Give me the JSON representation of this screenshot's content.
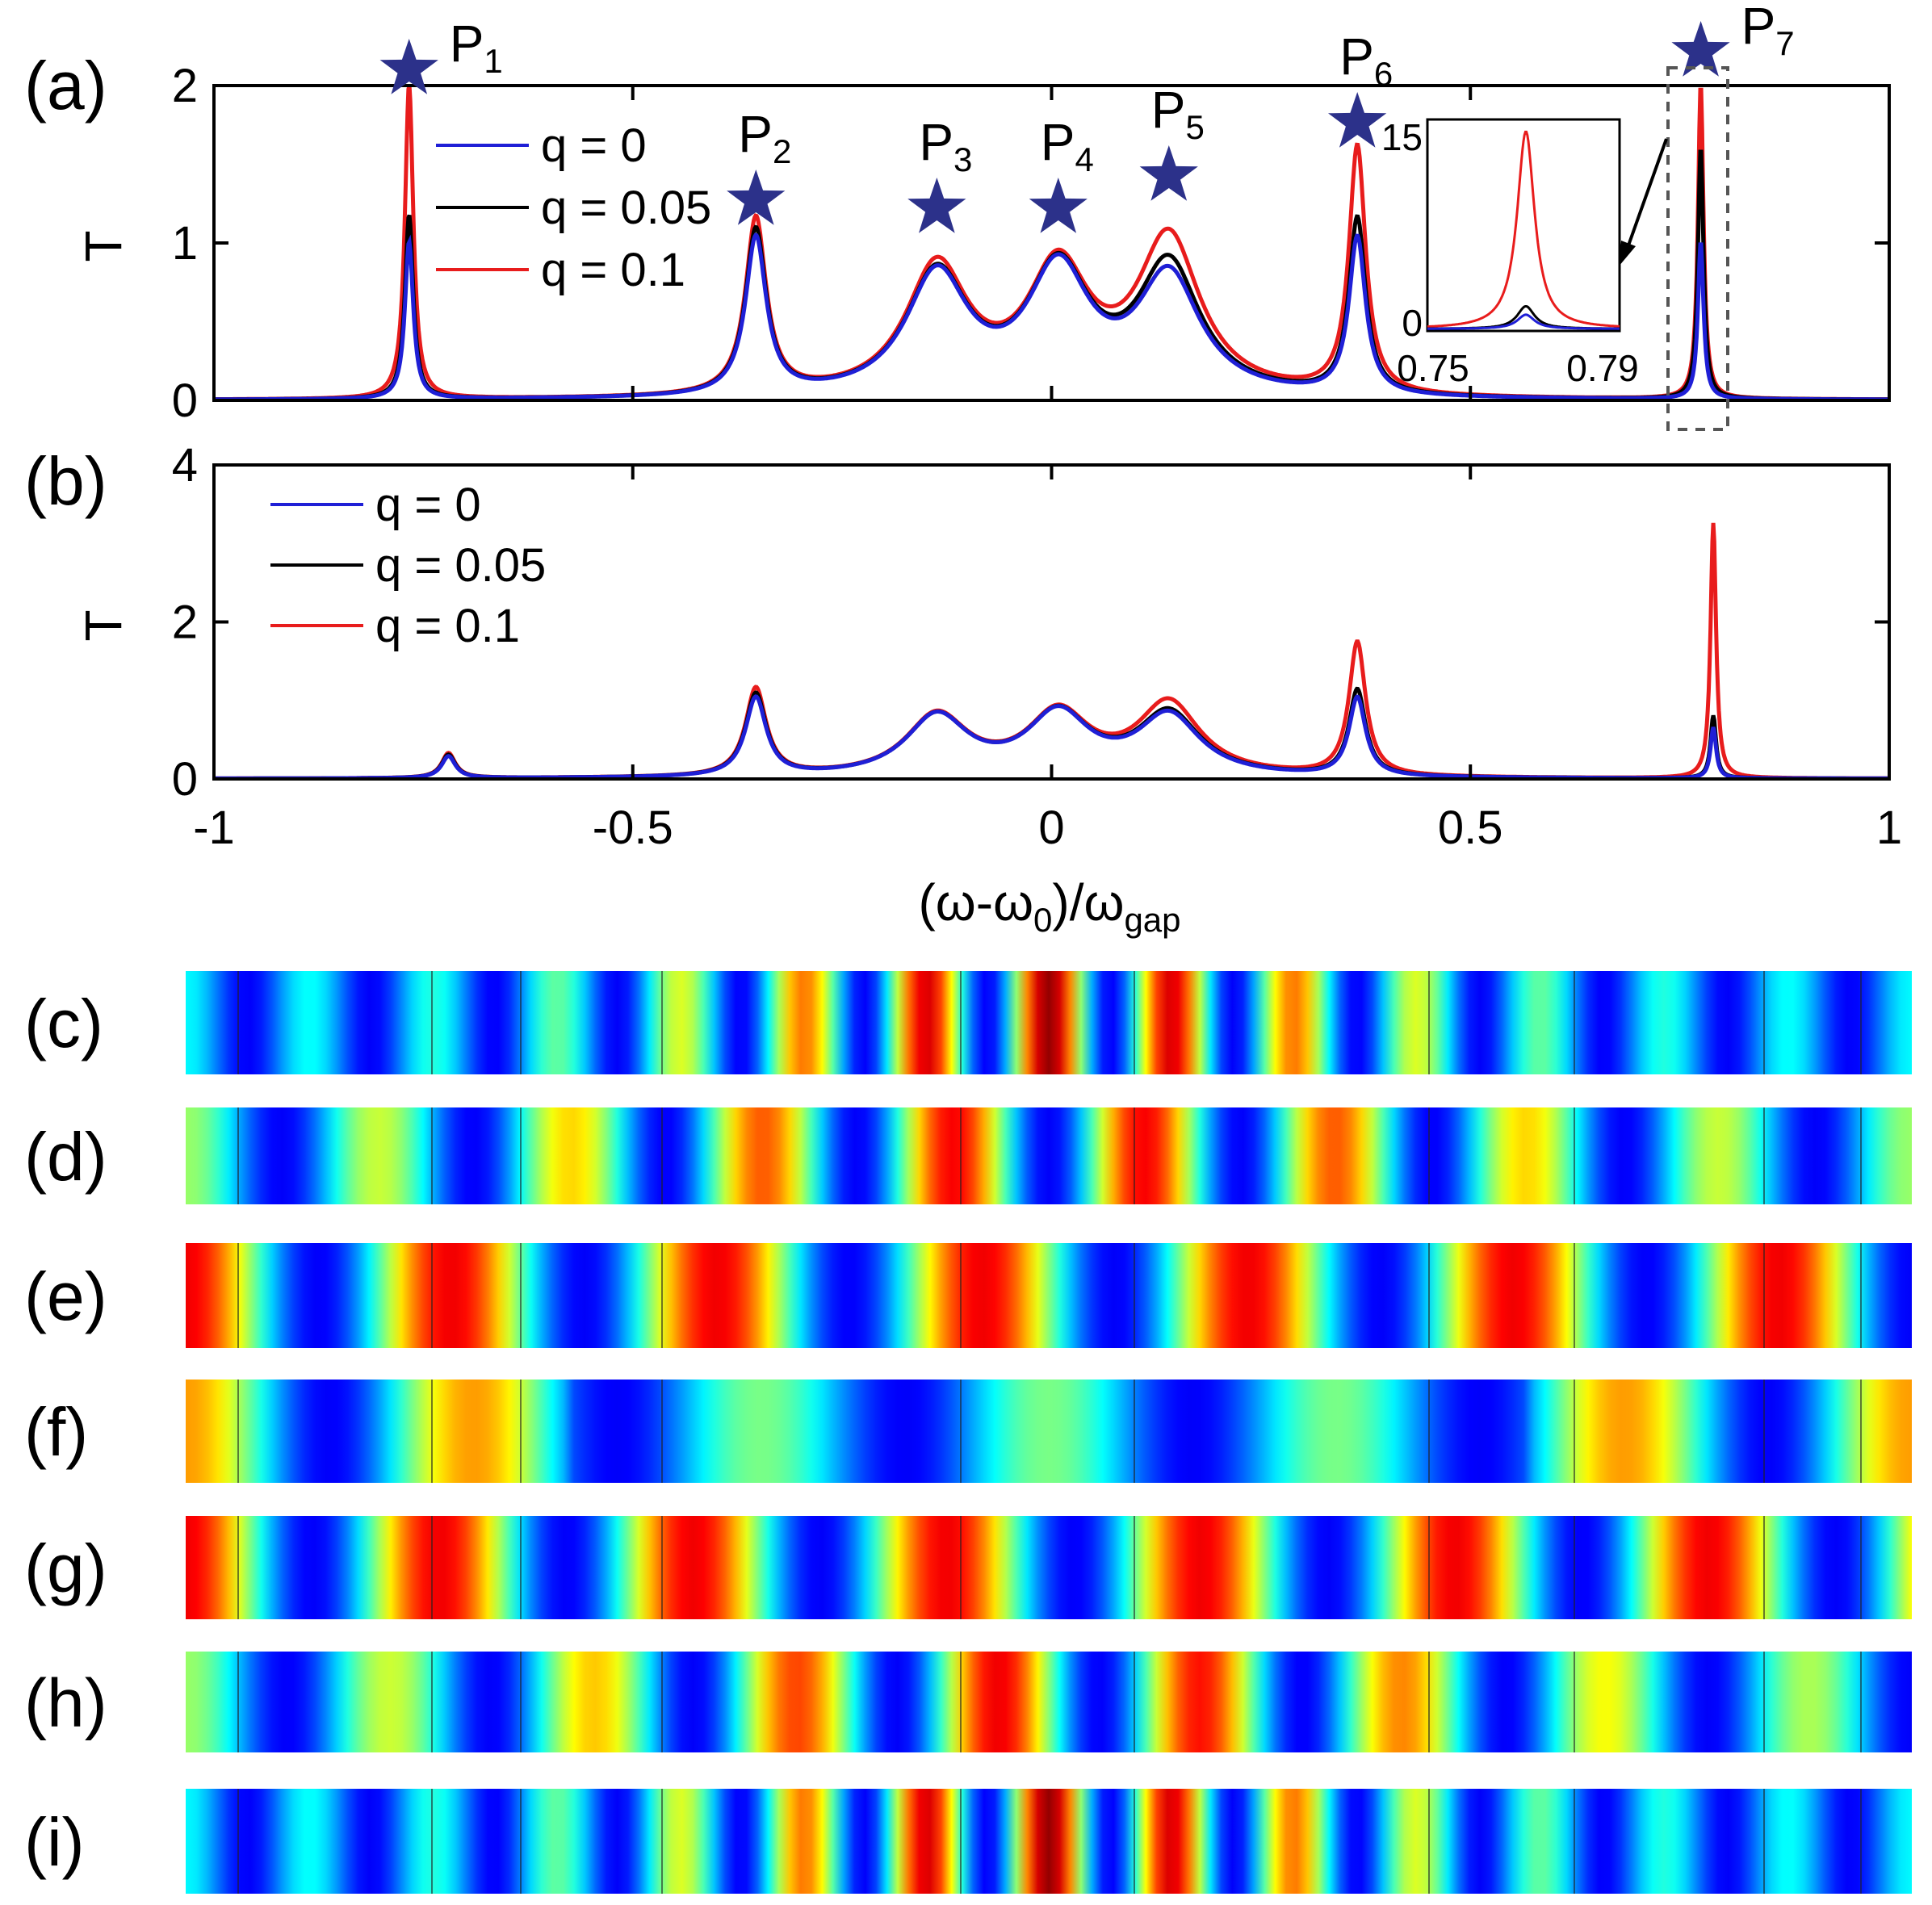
{
  "panels": {
    "a": "(a)",
    "b": "(b)",
    "c": "(c)",
    "d": "(d)",
    "e": "(e)",
    "f": "(f)",
    "g": "(g)",
    "h": "(h)",
    "i": "(i)"
  },
  "chart_data": [
    {
      "id": "a",
      "type": "line",
      "ylabel": "T",
      "xlim": [
        -1,
        1
      ],
      "ylim": [
        0,
        2
      ],
      "yticks": [
        "0",
        "1",
        "2"
      ],
      "legend": [
        "q = 0",
        "q = 0.05",
        "q = 0.1"
      ],
      "peaks": [
        {
          "label": "P",
          "sub": "1",
          "x": -0.767
        },
        {
          "label": "P",
          "sub": "2",
          "x": -0.353
        },
        {
          "label": "P",
          "sub": "3",
          "x": -0.137
        },
        {
          "label": "P",
          "sub": "4",
          "x": 0.008
        },
        {
          "label": "P",
          "sub": "5",
          "x": 0.14
        },
        {
          "label": "P",
          "sub": "6",
          "x": 0.365
        },
        {
          "label": "P",
          "sub": "7",
          "x": 0.775
        }
      ],
      "series": [
        {
          "name": "q = 0",
          "color": "#1f1fd6",
          "peaks": [
            [
              -0.767,
              1.0,
              0.006
            ],
            [
              -0.353,
              1.0,
              0.015
            ],
            [
              0.365,
              1.0,
              0.012
            ],
            [
              0.775,
              1.0,
              0.004
            ]
          ],
          "band": [
            0.98,
            1.0,
            0.96
          ]
        },
        {
          "name": "q = 0.05",
          "color": "#000000",
          "peaks": [
            [
              -0.767,
              1.17,
              0.006
            ],
            [
              -0.353,
              1.05,
              0.015
            ],
            [
              0.365,
              1.12,
              0.012
            ],
            [
              0.775,
              1.6,
              0.004
            ]
          ],
          "band": [
            0.99,
            1.0,
            1.05
          ]
        },
        {
          "name": "q = 0.1",
          "color": "#e81c1c",
          "peaks": [
            [
              -0.767,
              2.0,
              0.006
            ],
            [
              -0.353,
              1.12,
              0.015
            ],
            [
              0.365,
              1.57,
              0.012
            ],
            [
              0.775,
              2.0,
              0.004
            ]
          ],
          "band": [
            1.04,
            1.0,
            1.26
          ]
        }
      ],
      "inset": {
        "xlabel_ticks": [
          "0.75",
          "0.79"
        ],
        "yticks": [
          "0",
          "15"
        ],
        "xlim": [
          0.75,
          0.79
        ],
        "ylim": [
          0,
          15
        ],
        "series": [
          {
            "name": "q = 0",
            "color": "#1f1fd6",
            "peak": 1.0
          },
          {
            "name": "q = 0.05",
            "color": "#000000",
            "peak": 1.6
          },
          {
            "name": "q = 0.1",
            "color": "#e81c1c",
            "peak": 14.0
          }
        ]
      }
    },
    {
      "id": "b",
      "type": "line",
      "xlabel": "(ω-ω",
      "xlabel_sub1": "0",
      "xlabel_mid": ")/ω",
      "xlabel_sub2": "gap",
      "ylabel": "T",
      "xlim": [
        -1,
        1
      ],
      "ylim": [
        0,
        4
      ],
      "xticks": [
        "-1",
        "-0.5",
        "0",
        "0.5",
        "1"
      ],
      "yticks": [
        "0",
        "2",
        "4"
      ],
      "legend": [
        "q = 0",
        "q = 0.05",
        "q = 0.1"
      ],
      "series": [
        {
          "name": "q = 0",
          "color": "#1f1fd6",
          "peaks": [
            [
              -0.72,
              0.28,
              0.01
            ],
            [
              -0.353,
              1.0,
              0.015
            ],
            [
              0.365,
              1.0,
              0.012
            ],
            [
              0.79,
              0.65,
              0.004
            ]
          ],
          "band": [
            0.98,
            1.0,
            0.98
          ]
        },
        {
          "name": "q = 0.05",
          "color": "#000000",
          "peaks": [
            [
              -0.72,
              0.3,
              0.01
            ],
            [
              -0.353,
              1.05,
              0.015
            ],
            [
              0.365,
              1.1,
              0.012
            ],
            [
              0.79,
              0.8,
              0.004
            ]
          ],
          "band": [
            0.98,
            1.0,
            1.02
          ]
        },
        {
          "name": "q = 0.1",
          "color": "#e81c1c",
          "peaks": [
            [
              -0.72,
              0.32,
              0.01
            ],
            [
              -0.353,
              1.12,
              0.015
            ],
            [
              0.365,
              1.7,
              0.012
            ],
            [
              0.79,
              3.25,
              0.004
            ]
          ],
          "band": [
            0.99,
            1.0,
            1.18
          ]
        }
      ]
    }
  ],
  "field_maps": {
    "colormap": "jet",
    "rows": [
      {
        "id": "c",
        "label": "(c)",
        "period": 14.0,
        "amplitude": 1.0
      },
      {
        "id": "d",
        "label": "(d)",
        "period": 9.0,
        "amplitude": 0.9
      },
      {
        "id": "e",
        "label": "(e)",
        "period": 6.5,
        "amplitude": 1.0
      },
      {
        "id": "f",
        "label": "(f)",
        "period": 6.0,
        "amplitude": 0.7
      },
      {
        "id": "g",
        "label": "(g)",
        "period": 6.8,
        "amplitude": 1.0
      },
      {
        "id": "h",
        "label": "(h)",
        "period": 8.5,
        "amplitude": 0.9
      },
      {
        "id": "i",
        "label": "(i)",
        "period": 14.0,
        "amplitude": 1.0
      }
    ]
  }
}
